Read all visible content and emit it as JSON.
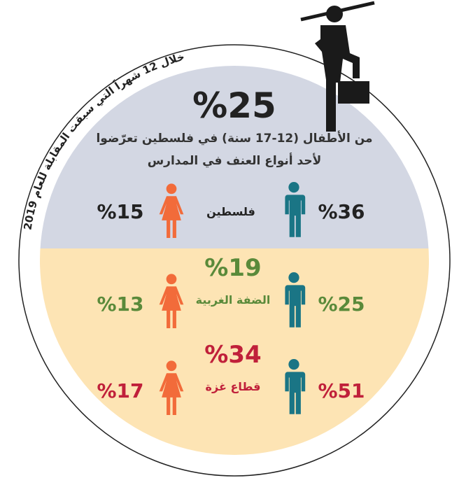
{
  "arc_caption": "خلال 12 شهراً التي سبقت المقابلة للعام 2019",
  "headline": {
    "value": "%25",
    "line1": "من الأطفال (12-17 سنة) في فلسطين تعرّضوا",
    "line2": "لأحد أنواع العنف في المدارس"
  },
  "regions": [
    {
      "name": "فلسطين",
      "total": null,
      "boys": "%36",
      "girls": "%15",
      "color": "#222222"
    },
    {
      "name": "الضفة الغربية",
      "total": "%19",
      "boys": "%25",
      "girls": "%13",
      "color": "#5a8a3a"
    },
    {
      "name": "قطاع غزة",
      "total": "%34",
      "boys": "%51",
      "girls": "%17",
      "color": "#c0203a"
    }
  ]
}
